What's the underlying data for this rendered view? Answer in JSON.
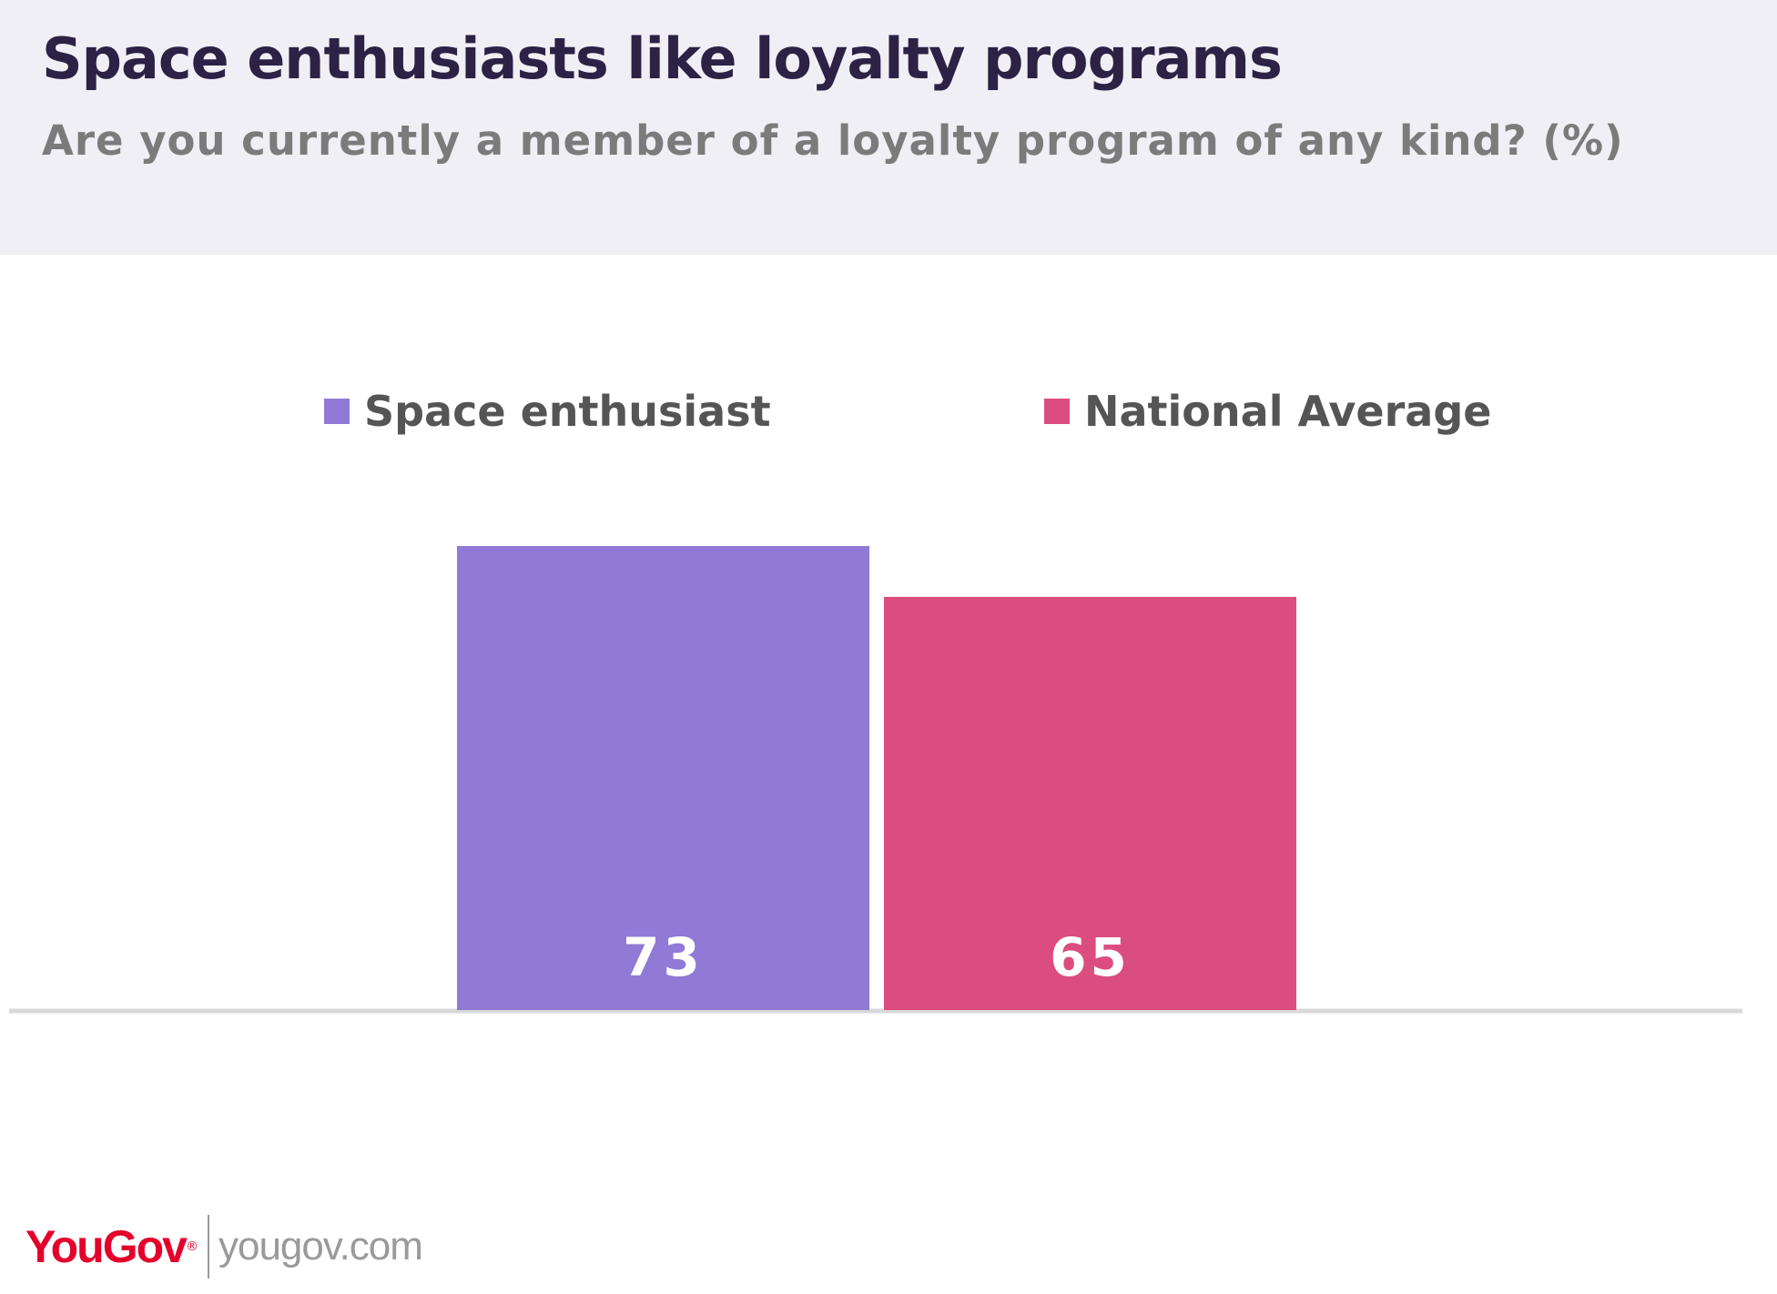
{
  "header": {
    "title": "Space enthusiasts like loyalty programs",
    "subtitle": "Are you currently a member of a loyalty program of any kind?  (%)"
  },
  "colors": {
    "header_bg": "#f0eff5",
    "title": "#2b2245",
    "space_enthusiast": "#907ad6",
    "national_average": "#dc4d7f",
    "baseline": "#d9d9d9"
  },
  "chart_data": {
    "type": "bar",
    "categories": [
      ""
    ],
    "series": [
      {
        "name": "Space enthusiast",
        "values": [
          73
        ],
        "color": "#907ad6"
      },
      {
        "name": "National Average",
        "values": [
          65
        ],
        "color": "#dc4d7f"
      }
    ],
    "ylim": [
      0,
      100
    ],
    "legend": "top",
    "grid": false,
    "data_labels": true
  },
  "footer": {
    "logo_text": "YouGov",
    "site": "yougov.com"
  }
}
